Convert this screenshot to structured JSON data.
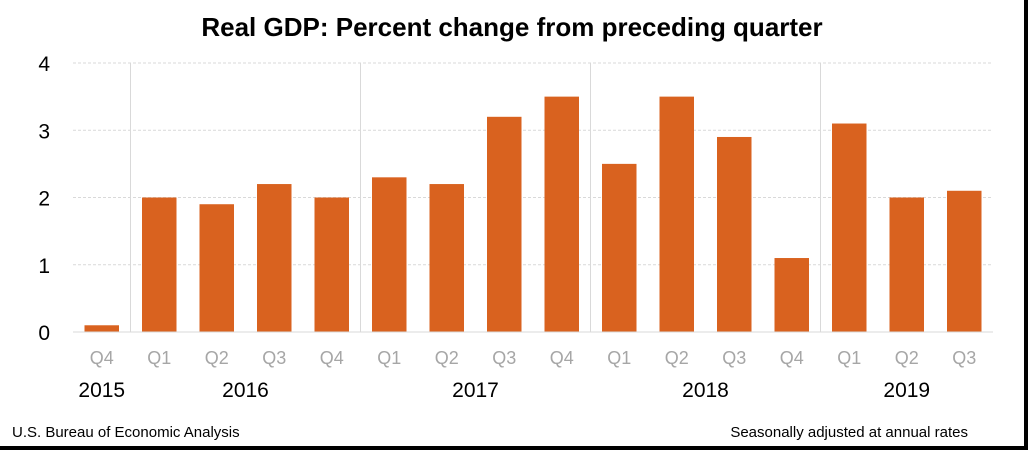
{
  "chart_data": {
    "type": "bar",
    "title": "Real GDP:  Percent change from preceding quarter",
    "categories": [
      "Q4",
      "Q1",
      "Q2",
      "Q3",
      "Q4",
      "Q1",
      "Q2",
      "Q3",
      "Q4",
      "Q1",
      "Q2",
      "Q3",
      "Q4",
      "Q1",
      "Q2",
      "Q3"
    ],
    "values": [
      0.1,
      2.0,
      1.9,
      2.2,
      2.0,
      2.3,
      2.2,
      3.2,
      3.5,
      2.5,
      3.5,
      2.9,
      1.1,
      3.1,
      2.0,
      2.1
    ],
    "year_groups": [
      {
        "year": "2015",
        "start": 0,
        "count": 1
      },
      {
        "year": "2016",
        "start": 1,
        "count": 4
      },
      {
        "year": "2017",
        "start": 5,
        "count": 4
      },
      {
        "year": "2018",
        "start": 9,
        "count": 4
      },
      {
        "year": "2019",
        "start": 13,
        "count": 3
      }
    ],
    "yticks": [
      "0",
      "1",
      "2",
      "3",
      "4"
    ],
    "ylim": [
      0,
      4
    ],
    "xlabel": "",
    "ylabel": "",
    "grid": true,
    "bar_color": "#d9621f",
    "grid_color": "#d9d9d9",
    "tick_label_color": "#a6a6a6"
  },
  "footer": {
    "source": "U.S. Bureau of Economic Analysis",
    "note": "Seasonally adjusted at annual rates"
  }
}
